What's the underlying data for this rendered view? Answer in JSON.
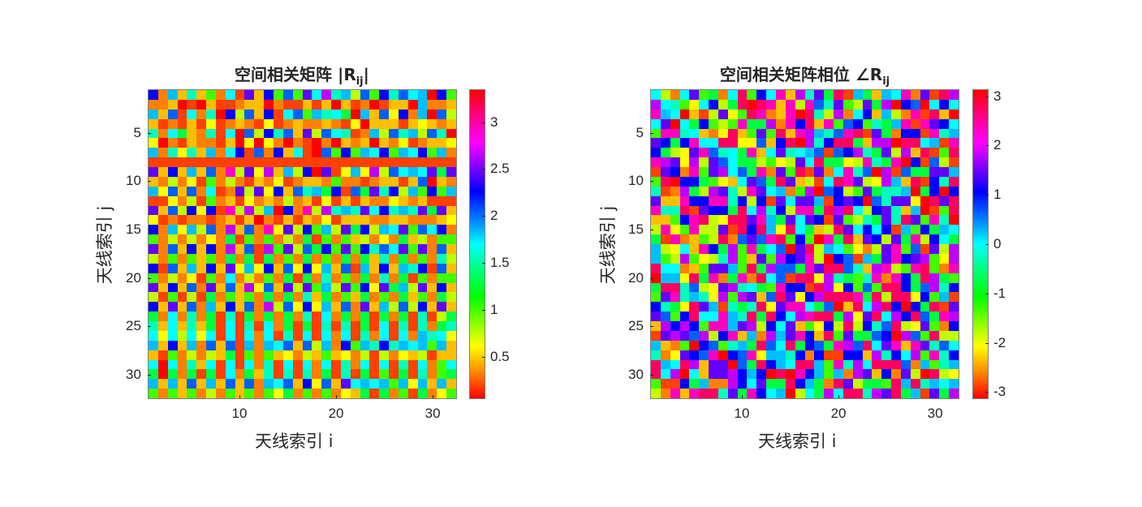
{
  "palette": [
    "#ff0000",
    "#ff4000",
    "#ff8000",
    "#ffbf00",
    "#ffff00",
    "#bfff00",
    "#40ff00",
    "#00ff40",
    "#00ffbf",
    "#00ffff",
    "#00bfff",
    "#0060ff",
    "#0000ff",
    "#6000ff",
    "#bf00ff",
    "#ff00bf",
    "#ff0060"
  ],
  "chart_data": [
    {
      "type": "heatmap",
      "title": "空间相关矩阵  |R_ij|",
      "title_main": "空间相关矩阵  |R",
      "title_sub": "ij",
      "title_end": "|",
      "xlabel": "天线索引 i",
      "ylabel": "天线索引 j",
      "xlim": [
        0.5,
        32.5
      ],
      "ylim": [
        0.5,
        32.5
      ],
      "xticks": [
        10,
        20,
        30
      ],
      "yticks": [
        5,
        10,
        15,
        20,
        25,
        30
      ],
      "colormap": "hsv",
      "clim": [
        0.05,
        3.35
      ],
      "colorbar_ticks": [
        0.5,
        1,
        1.5,
        2,
        2.5,
        3
      ],
      "colorbar_tick_labels": [
        "0.5",
        "1",
        "1.5",
        "2",
        "2.5",
        "3"
      ],
      "note": "32x32 magnitude matrix; row/column 8 near minimum (red band); checkerboard structure",
      "rows": [
        "C2A3836291D3C6B6D9E8A5B6C8B9A0C6",
        "2230103112330211313031201330A223",
        "A3B19280C5B3C19B6A8970A3B4C2A0B5",
        "312131412321412322321403331343233",
        "8297328190B5C8B3D5B9812A5B8A5B80",
        "4021322130404202102032303241233",
        "A28483A29C1B2C3910B6C6A9C6A9C6",
        "11111111111111111111111111111111",
        "D3C3A3B2F5D4E3A5C0D14A4E5B9A9D7",
        "3252416252132412332622123313B0",
        "A4B3B2912D5D4C3B8A7C1B7D8C5A6C6",
        "1142516231423252314131322432311",
        "D3B5C4C1F5E5A0C2F5E8A8D9C8A8D7",
        "4121221231302131324133322332223",
        "C2A4A5B2E3B2F4D5C6A5D7C5A9D6B9",
        "6252524271626252716263524273526",
        "D2B3C3C2E3B1E6D5B7C6D6C8B9D6",
        "5262636272717262726272738272628",
        "C1B3A3C3D4A4C3B4C4A3B1A3C3A8",
        "6252416292526271728262728271626",
        "D3C3B2D3B3E4B3D5D6A5D6C4D7A5",
        "5161517263627272837263726273627",
        "C3D3B2A3C3B2E5B4C4A3B2D3A5B5",
        "7292827181727272819272717271815",
        "8393837191819271718181719181827",
        "9495949191929181919291829192A8",
        "A3C3A2B3B1A2A9B3B5A2C6A8C8A9A6",
        "3162525371626342536342515243513",
        "9092839191928191929182919181926",
        "7072717192738181827181716171826",
        "A3A3B3A3B3B2A9B3C4B3D9A9A6A4",
        "6263625263626472626243717261724"
      ]
    },
    {
      "type": "heatmap",
      "title": "空间相关矩阵相位  ∠R_ij",
      "title_main": "空间相关矩阵相位  ∠R",
      "title_sub": "ij",
      "title_end": "",
      "xlabel": "天线索引 i",
      "ylabel": "天线索引 j",
      "xlim": [
        0.5,
        32.5
      ],
      "ylim": [
        0.5,
        32.5
      ],
      "xticks": [
        10,
        20,
        30
      ],
      "yticks": [
        5,
        10,
        15,
        20,
        25,
        30
      ],
      "colormap": "hsv",
      "clim": [
        -3.14,
        3.14
      ],
      "colorbar_ticks": [
        -3,
        -2,
        -1,
        0,
        1,
        2,
        3
      ],
      "colorbar_tick_labels": [
        "-3",
        "-2",
        "-1",
        "0",
        "1",
        "2",
        "3"
      ],
      "note": "32x32 phase matrix in radians; visually random, approximately uniform over [-pi, pi]",
      "rows": [
        "9529D6729G6C9F3E8D7G1A73A9F2D1GE",
        "E98649C57G0GF3F5FB8D65D7E0CB09C9",
        "FA90315D46GF23F0G85E29C3A52F1G30",
        "9D097C656F77E2FCG3F6BC687AF1FDC",
        "6FF89324G36D6G3FEA8BFG1D72CC1F8A",
        "DC7CF99GG44B3CG0E8CGG73EE0GG9A1F",
        "C754DFB897F39D89AB1BCE87D5E3G16G",
        "FED4E5DB9775645D9G7745F87F0C1B51",
        "1DC2F6DE9B7F2D6G1D29F8B0E1B77DDA",
        "6G0CC76439DB7GD3519GFD54EA3G1C8G",
        "812E75ED85FD9A26E0BC56D788A07C0C",
        "D33FCCFF8C5C1D9DDA1CDC0B8DD40GDG",
        "F88G1DCC7G9E8C5FF7GEG95CD83A016G",
        "336CFG54GGDFA7D9DC1D6587D8GD6F80",
        "5F46F55D1GCGA4G9735GD9C9C1A6C7A9",
        "71F2365G2BDBFG6C60F7G3DC5D7F5C9",
        "A5493FC7E6F79B0DG5A96425DF6B1D5E",
        "A65E6458E63D6ECDF50CB1A7DFCDE64E",
        "G99236DDA6G7EBB7FDGGB83EF56FG62F",
        "0AA4G7F27F2G9B1GG4E8768F2FC7GE76",
        "7GG8B54DE8976FCC1GE4C6B6GGC7BE8C",
        "6DF8A84E6ED3BGD4CEGGGF7G5GG4C6A1",
        "C874GDA1878G4DFF97B03G9EGC0C7G1D",
        "DB6CG99FA8G7GC9EFGG7E4DG9ECGB7FE",
        "3ECEC6FFADE5C9D364C5G5C8BG54D62C",
        "1DEDBE5CF3A2EADFC3G6D77BC0EB6G55",
        "A3260CB68A7GB9G7CB7FEBG9DF3FD8B9",
        "824DCBF0CBF4AA8C2C11CC3E8C9E6F8C",
        "GA9GE3DD0B7GCA9GGA6F8E9GGGB2A68A",
        "G9E093DDECAC0G0FCA6A2ED3C2D50G54",
        "611C7A22EC9D77GCA72GD5776GAG8A9A",
        "52F3FGG8D7FC9A0597E9GG8EDG7A1D7E"
      ]
    }
  ],
  "figure": {
    "left": {
      "title_main": "空间相关矩阵  |R",
      "title_sub": "ij",
      "title_end": "|",
      "xlabel": "天线索引 i",
      "ylabel": "天线索引 j",
      "xticks": [
        "10",
        "20",
        "30"
      ],
      "yticks": [
        "5",
        "10",
        "15",
        "20",
        "25",
        "30"
      ],
      "cbar_ticks": [
        "3",
        "2.5",
        "2",
        "1.5",
        "1",
        "0.5"
      ]
    },
    "right": {
      "title_main": "空间相关矩阵相位  ∠R",
      "title_sub": "ij",
      "xlabel": "天线索引 i",
      "ylabel": "天线索引 j",
      "xticks": [
        "10",
        "20",
        "30"
      ],
      "yticks": [
        "5",
        "10",
        "15",
        "20",
        "25",
        "30"
      ],
      "cbar_ticks": [
        "3",
        "2",
        "1",
        "0",
        "-1",
        "-2",
        "-3"
      ]
    }
  }
}
